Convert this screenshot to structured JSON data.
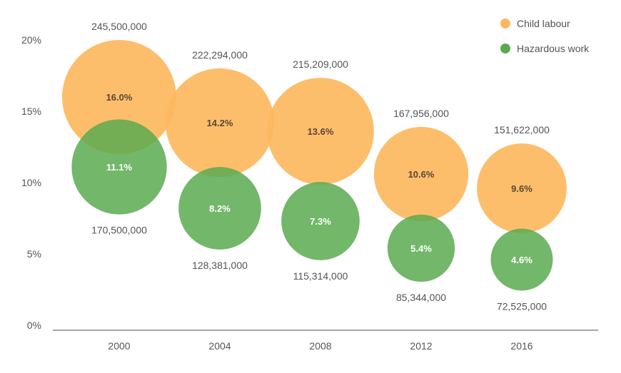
{
  "chart_data": {
    "type": "bubble",
    "categories": [
      "2000",
      "2004",
      "2008",
      "2012",
      "2016"
    ],
    "y_ticks": [
      "0%",
      "5%",
      "10%",
      "15%",
      "20%"
    ],
    "ylim": [
      0,
      20
    ],
    "grid": false,
    "legend_position": "top-right",
    "series": [
      {
        "name": "Child labour",
        "color": "#fdb85f",
        "values": [
          16.0,
          14.2,
          13.6,
          10.6,
          9.6
        ],
        "labels": [
          "16.0%",
          "14.2%",
          "13.6%",
          "10.6%",
          "9.6%"
        ],
        "counts": [
          "245,500,000",
          "222,294,000",
          "215,209,000",
          "167,956,000",
          "151,622,000"
        ],
        "label_text_color": "#5a4630"
      },
      {
        "name": "Hazardous work",
        "color": "#5aaa50",
        "values": [
          11.1,
          8.2,
          7.3,
          5.4,
          4.6
        ],
        "labels": [
          "11.1%",
          "8.2%",
          "7.3%",
          "5.4%",
          "4.6%"
        ],
        "counts": [
          "170,500,000",
          "128,381,000",
          "115,314,000",
          "85,344,000",
          "72,525,000"
        ],
        "label_text_color": "#ffffff"
      }
    ]
  }
}
